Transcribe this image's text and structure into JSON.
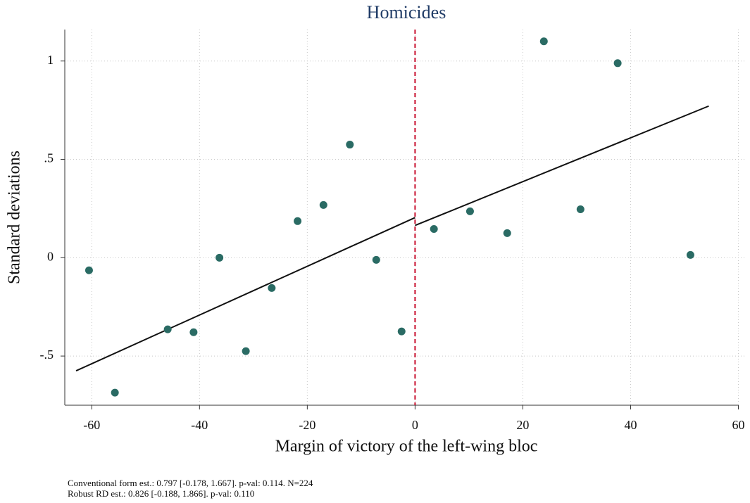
{
  "chart_data": {
    "type": "scatter",
    "title": "Homicides",
    "x_label": "Margin of victory of the left-wing bloc",
    "y_label": "Standard deviations",
    "points": {
      "color": "#2a6b64",
      "x": [
        -60.5,
        -55.7,
        -45.9,
        -41.1,
        -36.3,
        -31.4,
        -26.6,
        -21.8,
        -17.0,
        -12.1,
        -7.2,
        -2.5,
        3.5,
        10.2,
        17.1,
        23.9,
        30.7,
        37.6,
        51.1
      ],
      "values": [
        -0.064,
        -0.686,
        -0.364,
        -0.379,
        0.0,
        -0.475,
        -0.154,
        0.186,
        0.268,
        0.575,
        -0.011,
        -0.375,
        0.146,
        0.236,
        0.125,
        1.1,
        0.246,
        0.989,
        0.014
      ]
    },
    "fit_lines": [
      {
        "color": "#111111",
        "x": [
          -62.9,
          0
        ],
        "values": [
          -0.575,
          0.204
        ]
      },
      {
        "color": "#111111",
        "x": [
          0,
          54.5
        ],
        "values": [
          0.164,
          0.771
        ]
      }
    ],
    "cutoff": 0,
    "cutoff_color": "#c8102e",
    "xlim": [
      -65,
      61.5
    ],
    "ylim": [
      -0.75,
      1.16
    ],
    "xticks": [
      -60,
      -40,
      -20,
      0,
      20,
      40,
      60
    ],
    "yticks": [
      {
        "value": -0.5,
        "label": "-.5"
      },
      0,
      {
        "value": 0.5,
        "label": ".5"
      },
      1
    ],
    "grid": true,
    "notes": [
      "Conventional form est.: 0.797 [-0.178, 1.667]. p-val: 0.114. N=224",
      "Robust RD est.: 0.826 [-0.188, 1.866]. p-val: 0.110"
    ]
  }
}
